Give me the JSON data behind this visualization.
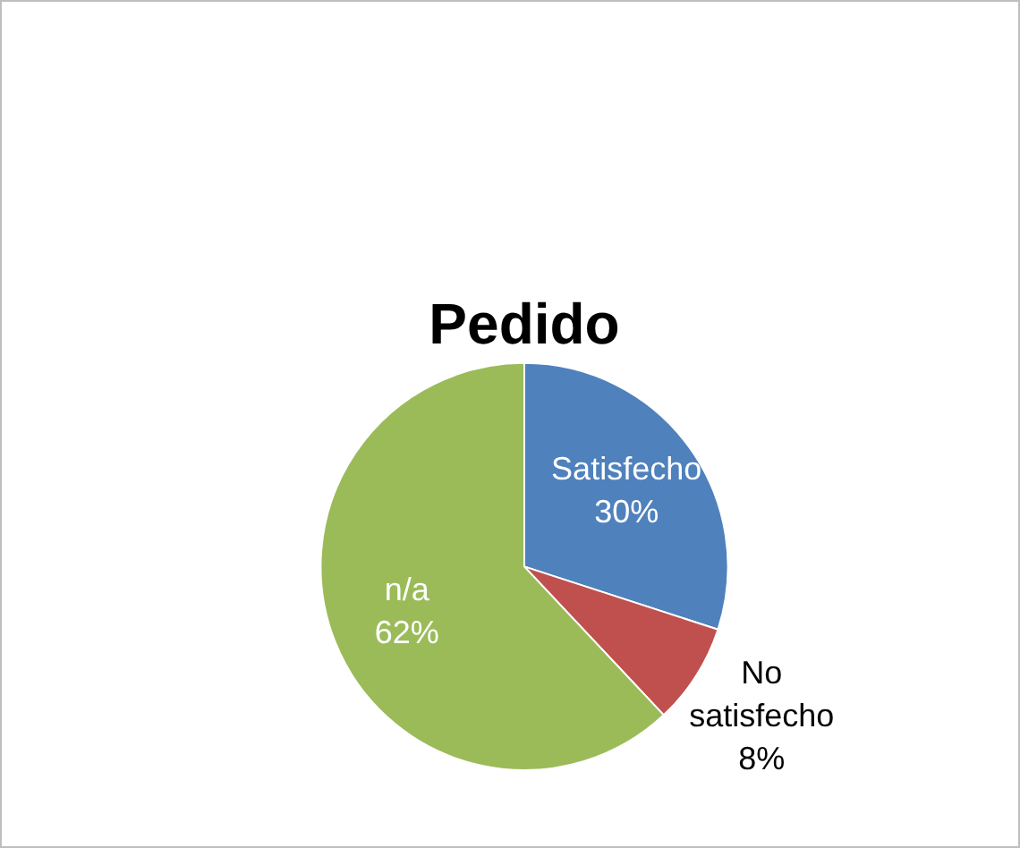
{
  "chart_data": {
    "type": "pie",
    "title": "Pedido",
    "categories": [
      "Satisfecho",
      "No satisfecho",
      "n/a"
    ],
    "values": [
      30,
      8,
      62
    ],
    "colors": [
      "#4f81bd",
      "#c0504d",
      "#9bbb59"
    ],
    "value_labels": [
      "30%",
      "8%",
      "62%"
    ],
    "legend": false
  }
}
